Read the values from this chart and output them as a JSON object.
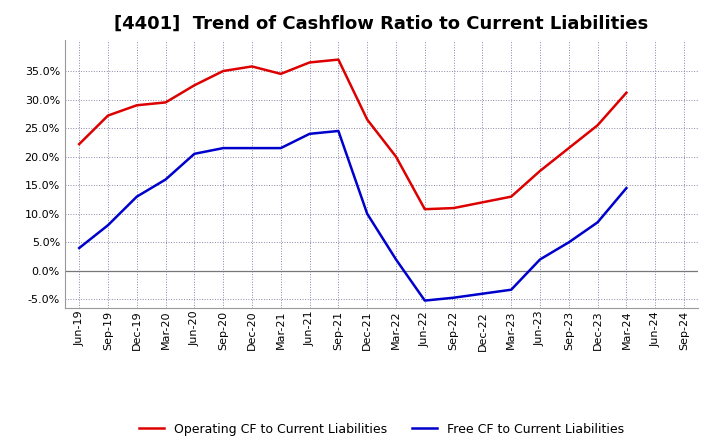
{
  "title": "[4401]  Trend of Cashflow Ratio to Current Liabilities",
  "x_labels": [
    "Jun-19",
    "Sep-19",
    "Dec-19",
    "Mar-20",
    "Jun-20",
    "Sep-20",
    "Dec-20",
    "Mar-21",
    "Jun-21",
    "Sep-21",
    "Dec-21",
    "Mar-22",
    "Jun-22",
    "Sep-22",
    "Dec-22",
    "Mar-23",
    "Jun-23",
    "Sep-23",
    "Dec-23",
    "Mar-24",
    "Jun-24",
    "Sep-24"
  ],
  "operating_cf": [
    0.222,
    0.272,
    0.29,
    0.295,
    0.325,
    0.35,
    0.358,
    0.345,
    0.365,
    0.37,
    0.265,
    0.2,
    0.108,
    0.11,
    0.12,
    0.13,
    0.175,
    0.215,
    0.255,
    0.312,
    null,
    null
  ],
  "free_cf": [
    0.04,
    0.08,
    0.13,
    0.16,
    0.205,
    0.215,
    0.215,
    0.215,
    0.24,
    0.245,
    0.1,
    0.02,
    -0.052,
    -0.047,
    -0.04,
    -0.033,
    0.02,
    0.05,
    0.085,
    0.145,
    null,
    null
  ],
  "ylim": [
    -0.065,
    0.405
  ],
  "yticks": [
    -0.05,
    0.0,
    0.05,
    0.1,
    0.15,
    0.2,
    0.25,
    0.3,
    0.35
  ],
  "operating_color": "#dd0000",
  "free_color": "#0000cc",
  "background_color": "#ffffff",
  "plot_bg_color": "#ffffff",
  "grid_color": "#8888aa",
  "legend_operating": "Operating CF to Current Liabilities",
  "legend_free": "Free CF to Current Liabilities",
  "title_fontsize": 13,
  "tick_fontsize": 8,
  "legend_fontsize": 9
}
